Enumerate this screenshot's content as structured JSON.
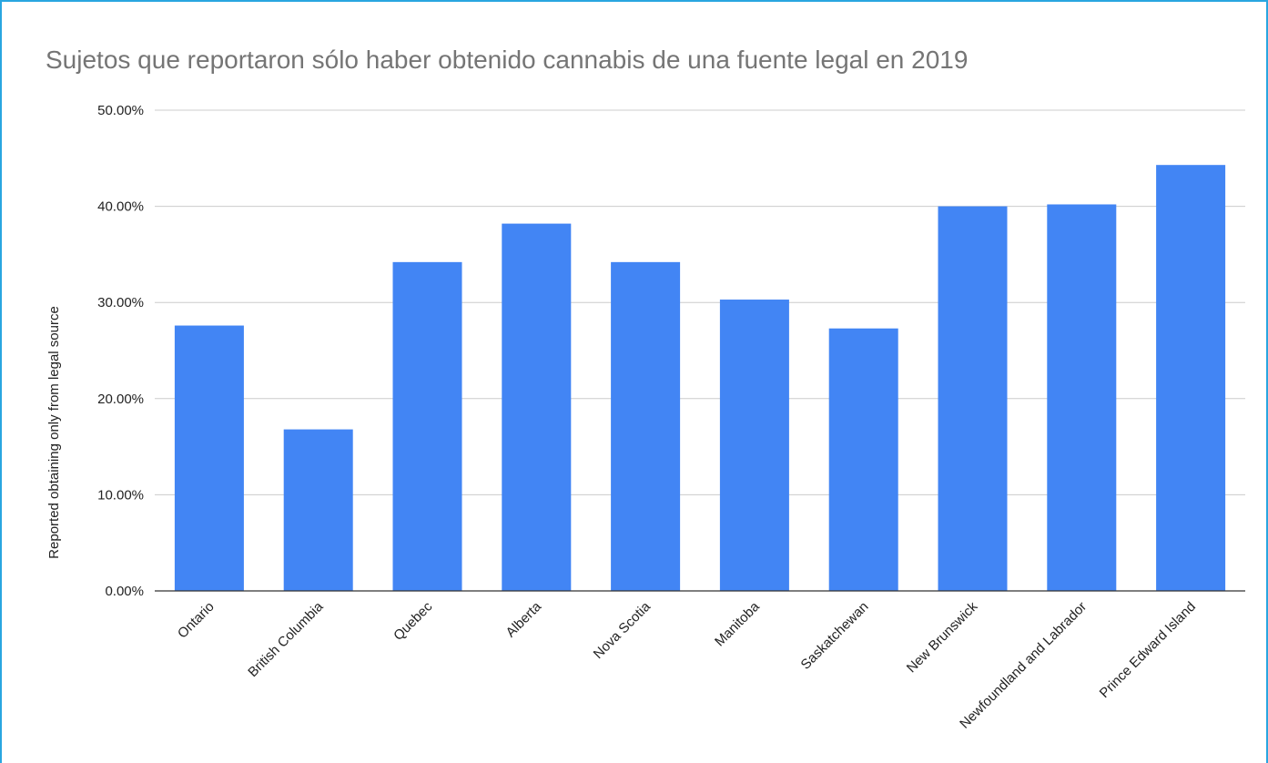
{
  "chart_data": {
    "type": "bar",
    "title": "Sujetos que reportaron sólo haber obtenido cannabis de una fuente legal en 2019",
    "xlabel": "",
    "ylabel": "Reported obtaining only from legal source",
    "ylim": [
      0,
      0.5
    ],
    "yticks": [
      "0.00%",
      "10.00%",
      "20.00%",
      "30.00%",
      "40.00%",
      "50.00%"
    ],
    "categories": [
      "Ontario",
      "British Columbia",
      "Quebec",
      "Alberta",
      "Nova Scotia",
      "Manitoba",
      "Saskatchewan",
      "New Brunswick",
      "Newfoundland and Labrador",
      "Prince Edward Island"
    ],
    "values": [
      0.276,
      0.168,
      0.342,
      0.382,
      0.342,
      0.303,
      0.273,
      0.4,
      0.402,
      0.443
    ],
    "grid": true,
    "bar_color": "#4285f4"
  },
  "colors": {
    "frame": "#29a6e0",
    "grid": "#cccccc",
    "axis": "#333333"
  }
}
